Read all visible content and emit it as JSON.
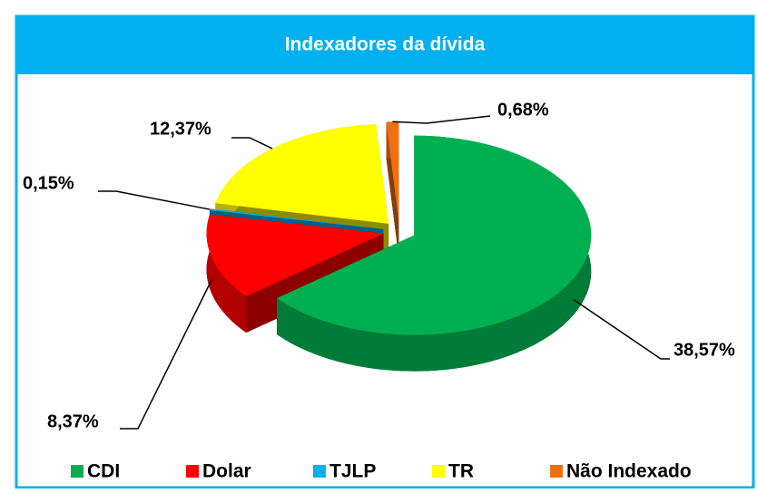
{
  "chart_data": {
    "type": "pie",
    "title": "Indexadores da dívida",
    "categories": [
      "CDI",
      "Dolar",
      "TJLP",
      "TR",
      "Não Indexado"
    ],
    "values": [
      38.57,
      8.37,
      0.15,
      12.37,
      0.68
    ],
    "value_labels": [
      "38,57%",
      "8,37%",
      "0,15%",
      "12,37%",
      "0,68%"
    ],
    "colors": [
      "#00b050",
      "#ff0000",
      "#00b0f0",
      "#ffff00",
      "#f07010"
    ],
    "legend": "bottom"
  }
}
